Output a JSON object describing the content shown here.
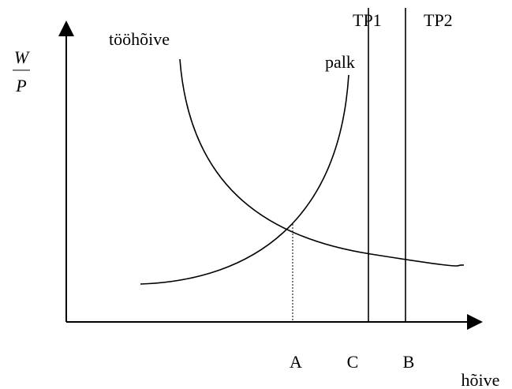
{
  "axes": {
    "y_label": {
      "numerator": "W",
      "denominator": "P"
    },
    "x_label": "hõive"
  },
  "curves": [
    {
      "label": "tööhõive"
    },
    {
      "label": "palk"
    }
  ],
  "lines": [
    {
      "label": "TP1"
    },
    {
      "label": "TP2"
    }
  ],
  "points": [
    "A",
    "C",
    "B"
  ]
}
